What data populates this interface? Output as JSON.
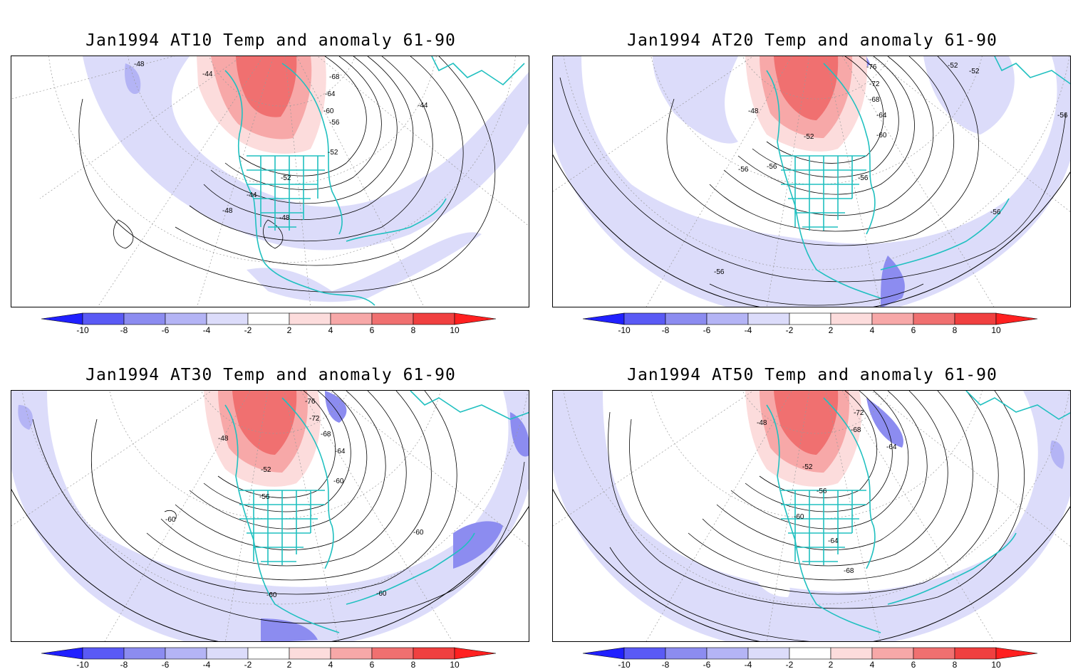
{
  "panels": [
    {
      "title": "Jan1994 AT10 Temp and anomaly 61-90",
      "contour_labels": [
        "-48",
        "-44",
        "-68",
        "-64",
        "-60",
        "-56",
        "-52",
        "-44",
        "-52",
        "-44",
        "-48",
        "-48"
      ]
    },
    {
      "title": "Jan1994 AT20 Temp and anomaly 61-90",
      "contour_labels": [
        "-76",
        "-52",
        "-52",
        "-72",
        "-68",
        "-64",
        "-48",
        "-60",
        "-52",
        "-56",
        "-56",
        "-56",
        "-56",
        "-56",
        "-56"
      ]
    },
    {
      "title": "Jan1994 AT30 Temp and anomaly 61-90",
      "contour_labels": [
        "-76",
        "-72",
        "-68",
        "-48",
        "-64",
        "-52",
        "-60",
        "-56",
        "-60",
        "-60",
        "-60",
        "-60"
      ]
    },
    {
      "title": "Jan1994 AT50 Temp and anomaly 61-90",
      "contour_labels": [
        "-72",
        "-48",
        "-68",
        "-64",
        "-52",
        "-56",
        "-60",
        "-64",
        "-68"
      ]
    }
  ],
  "colorbar": {
    "ticks": [
      "-10",
      "-8",
      "-6",
      "-4",
      "-2",
      "2",
      "4",
      "6",
      "8",
      "10"
    ],
    "colors": [
      "#2020ff",
      "#5a5af5",
      "#8c8cf0",
      "#b4b4f5",
      "#dcdcfa",
      "#ffffff",
      "#fcdcdc",
      "#f7a8a8",
      "#f07070",
      "#f04040",
      "#ff2020"
    ]
  },
  "palette": {
    "neg": "#dcdcfa",
    "neg2": "#b4b4f5",
    "neg3": "#8c8cf0",
    "pos": "#fcdcdc",
    "pos2": "#f7a8a8",
    "pos3": "#f07070",
    "pos4": "#f04040",
    "coast": "#20c0c0"
  }
}
